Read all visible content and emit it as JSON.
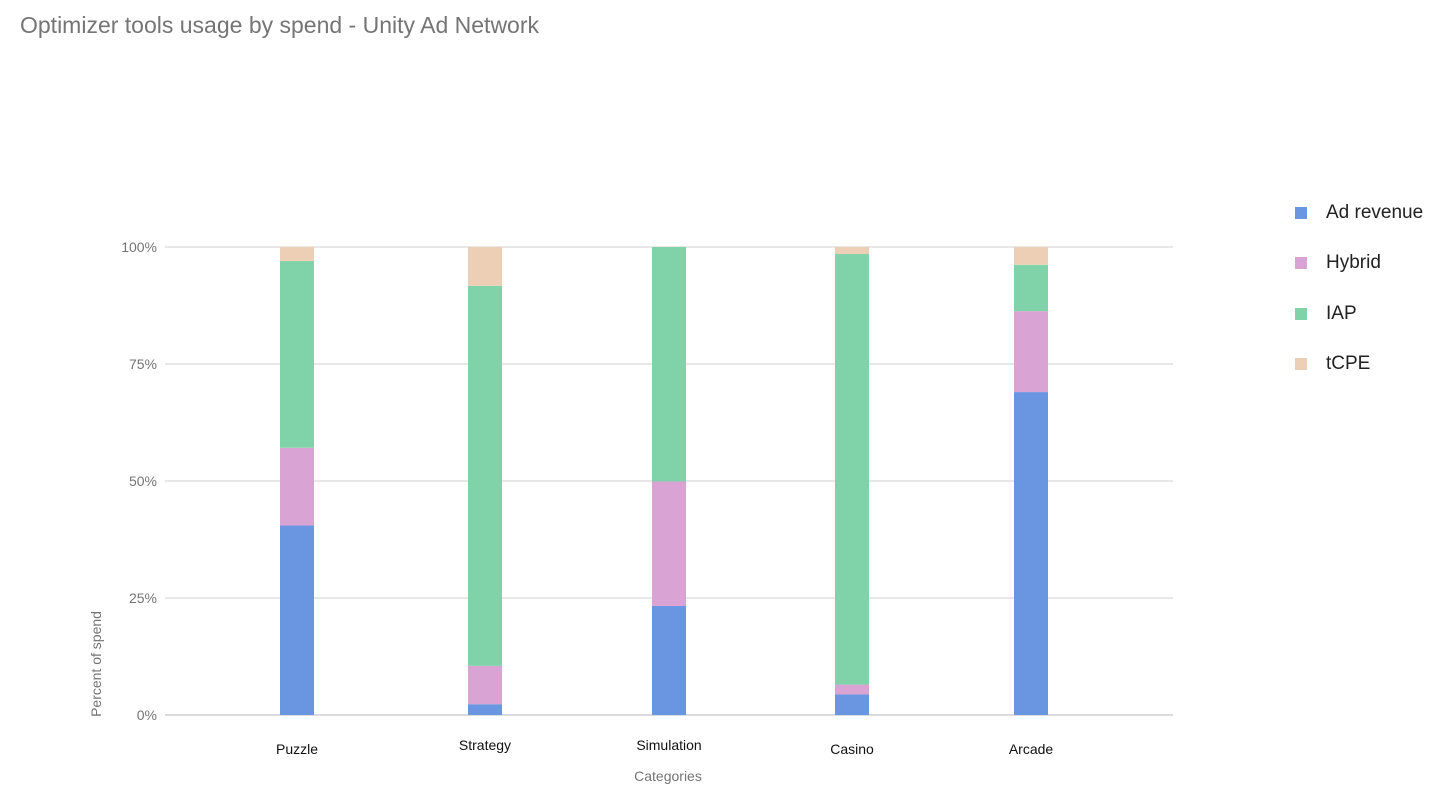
{
  "title": "Optimizer tools usage by spend - Unity Ad Network",
  "chart_data": {
    "type": "bar",
    "stacked": true,
    "title": "Optimizer tools usage by spend - Unity Ad Network",
    "xlabel": "Categories",
    "ylabel": "Percent of spend",
    "categories": [
      "Puzzle",
      "Strategy",
      "Simulation",
      "Casino",
      "Arcade"
    ],
    "series": [
      {
        "name": "Ad revenue",
        "color": "#6a95e0",
        "values": [
          40.5,
          2.3,
          23.3,
          4.4,
          69.0
        ]
      },
      {
        "name": "Hybrid",
        "color": "#d9a3d4",
        "values": [
          16.6,
          8.2,
          26.6,
          2.1,
          17.3
        ]
      },
      {
        "name": "IAP",
        "color": "#80d3a8",
        "values": [
          39.9,
          81.2,
          50.1,
          92.0,
          9.9
        ]
      },
      {
        "name": "tCPE",
        "color": "#eccfb4",
        "values": [
          3.0,
          8.3,
          0.0,
          1.5,
          3.8
        ]
      }
    ],
    "ylim": [
      0,
      100
    ],
    "yticks": [
      {
        "value": 0,
        "label": "0%"
      },
      {
        "value": 25,
        "label": "25%"
      },
      {
        "value": 50,
        "label": "50%"
      },
      {
        "value": 75,
        "label": "75%"
      },
      {
        "value": 100,
        "label": "100%"
      }
    ],
    "grid": true,
    "legend_position": "right"
  }
}
